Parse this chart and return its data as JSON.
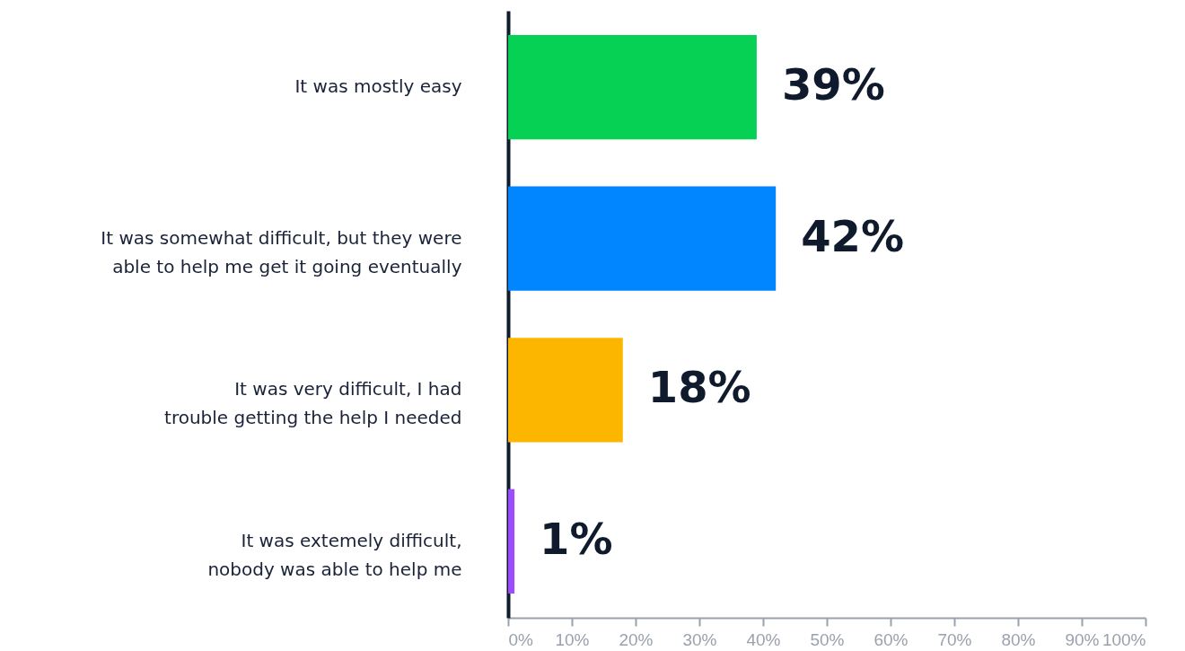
{
  "chart_data": {
    "type": "bar",
    "orientation": "horizontal",
    "categories": [
      "It was mostly easy",
      "It was somewhat difficult, but they were able to help me get it going eventually",
      "It was very difficult, I had trouble getting the help I needed",
      "It was extemely difficult, nobody was able to help me"
    ],
    "values": [
      39,
      42,
      18,
      1
    ],
    "colors": [
      "#06d155",
      "#0286ff",
      "#fdb600",
      "#9b4dff"
    ],
    "value_labels": [
      "39%",
      "42%",
      "18%",
      "1%"
    ],
    "xlim": [
      0,
      100
    ],
    "xticks": [
      {
        "value": 0,
        "label": "0%"
      },
      {
        "value": 10,
        "label": "10%"
      },
      {
        "value": 20,
        "label": "20%"
      },
      {
        "value": 30,
        "label": "30%"
      },
      {
        "value": 40,
        "label": "40%"
      },
      {
        "value": 50,
        "label": "50%"
      },
      {
        "value": 60,
        "label": "60%"
      },
      {
        "value": 70,
        "label": "70%"
      },
      {
        "value": 80,
        "label": "80%"
      },
      {
        "value": 90,
        "label": "90%"
      },
      {
        "value": 100,
        "label": "100%"
      }
    ],
    "grid": false
  }
}
